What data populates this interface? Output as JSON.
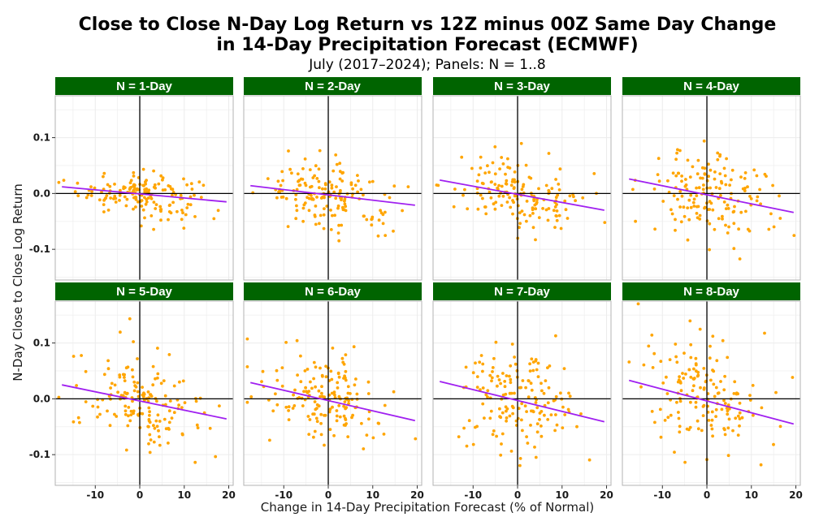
{
  "title_line1": "Close to Close N-Day Log Return vs 12Z minus 00Z Same Day Change",
  "title_line2": "in 14-Day Precipitation Forecast (ECMWF)",
  "subtitle": "July (2017–2024); Panels: N = 1..8",
  "xlabel": "Change in 14-Day Precipitation Forecast (% of Normal)",
  "ylabel": "N-Day Close to Close Log Return",
  "colors": {
    "points": "#ffa500",
    "fit_line": "#a020f0",
    "strip": "#006400",
    "zero_lines": "#000000",
    "grid": "#ececec",
    "panel_border": "#b3b3b3"
  },
  "chart_data": {
    "type": "scatter",
    "facet_layout": {
      "rows": 2,
      "cols": 4
    },
    "xlim": [
      -19,
      21
    ],
    "ylim": [
      -0.155,
      0.175
    ],
    "x_ticks": [
      -10,
      0,
      10,
      20
    ],
    "x_tick_labels": [
      "-10",
      "0",
      "10",
      "20"
    ],
    "y_ticks": [
      -0.1,
      0.0,
      0.1
    ],
    "y_tick_labels": [
      "-0.1",
      "0.0",
      "0.1"
    ],
    "grid": true,
    "reference_lines": {
      "x": 0,
      "y": 0
    },
    "points_per_panel": 160,
    "panels": [
      {
        "label": "N = 1-Day",
        "fit": {
          "x_start": -17.5,
          "y_start": 0.012,
          "x_end": 19.5,
          "y_end": -0.015
        },
        "residual_sd": 0.02
      },
      {
        "label": "N = 2-Day",
        "fit": {
          "x_start": -17.5,
          "y_start": 0.014,
          "x_end": 19.5,
          "y_end": -0.021
        },
        "residual_sd": 0.03
      },
      {
        "label": "N = 3-Day",
        "fit": {
          "x_start": -17.5,
          "y_start": 0.024,
          "x_end": 19.5,
          "y_end": -0.03
        },
        "residual_sd": 0.035
      },
      {
        "label": "N = 4-Day",
        "fit": {
          "x_start": -17.5,
          "y_start": 0.026,
          "x_end": 19.5,
          "y_end": -0.034
        },
        "residual_sd": 0.04
      },
      {
        "label": "N = 5-Day",
        "fit": {
          "x_start": -17.5,
          "y_start": 0.025,
          "x_end": 19.5,
          "y_end": -0.036
        },
        "residual_sd": 0.042
      },
      {
        "label": "N = 6-Day",
        "fit": {
          "x_start": -17.5,
          "y_start": 0.029,
          "x_end": 19.5,
          "y_end": -0.039
        },
        "residual_sd": 0.045
      },
      {
        "label": "N = 7-Day",
        "fit": {
          "x_start": -17.5,
          "y_start": 0.031,
          "x_end": 19.5,
          "y_end": -0.041
        },
        "residual_sd": 0.047
      },
      {
        "label": "N = 8-Day",
        "fit": {
          "x_start": -17.5,
          "y_start": 0.033,
          "x_end": 19.5,
          "y_end": -0.045
        },
        "residual_sd": 0.05
      }
    ]
  }
}
